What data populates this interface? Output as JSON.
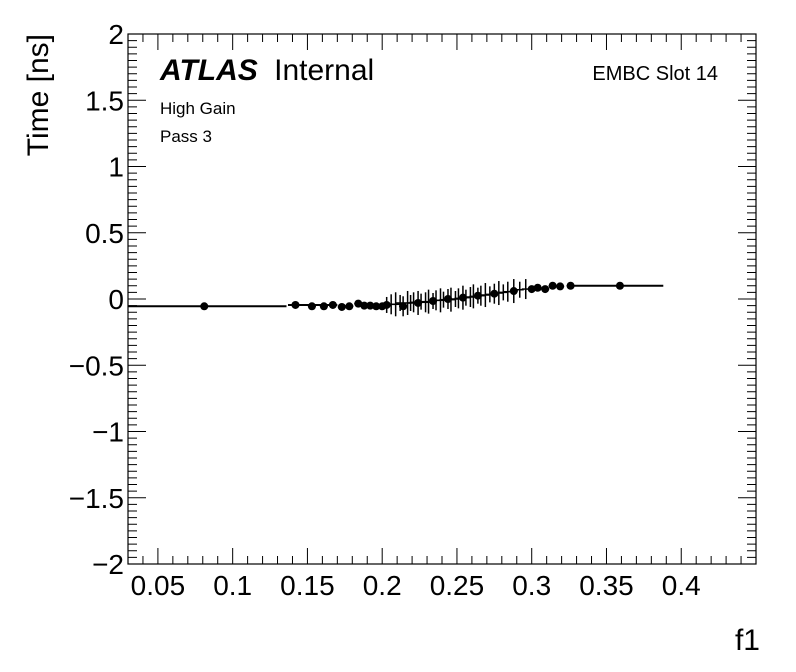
{
  "chart_data": {
    "type": "scatter",
    "title": "",
    "xlabel": "f1",
    "ylabel": "Time [ns]",
    "xlim": [
      0.03,
      0.45
    ],
    "ylim": [
      -2,
      2
    ],
    "grid": false,
    "x_ticks": [
      0.05,
      0.1,
      0.15,
      0.2,
      0.25,
      0.3,
      0.35,
      0.4
    ],
    "x_tick_labels": [
      "0.05",
      "0.1",
      "0.15",
      "0.2",
      "0.25",
      "0.3",
      "0.35",
      "0.4"
    ],
    "y_ticks": [
      -2,
      -1.5,
      -1,
      -0.5,
      0,
      0.5,
      1,
      1.5,
      2
    ],
    "y_tick_labels": [
      "−2",
      "−1.5",
      "−1",
      "−0.5",
      "0",
      "0.5",
      "1",
      "1.5",
      "2"
    ],
    "annotations": {
      "experiment": "ATLAS",
      "status": "Internal",
      "gain": "High Gain",
      "pass": "Pass 3",
      "slot": "EMBC Slot 14"
    },
    "series": [
      {
        "kind": "points",
        "marker_color": "#000000",
        "points": [
          {
            "x": 0.081,
            "y": -0.055
          },
          {
            "x": 0.142,
            "y": -0.045
          },
          {
            "x": 0.153,
            "y": -0.055
          },
          {
            "x": 0.161,
            "y": -0.055
          },
          {
            "x": 0.167,
            "y": -0.045
          },
          {
            "x": 0.173,
            "y": -0.06
          },
          {
            "x": 0.178,
            "y": -0.055
          },
          {
            "x": 0.184,
            "y": -0.035
          },
          {
            "x": 0.188,
            "y": -0.05
          },
          {
            "x": 0.192,
            "y": -0.05
          },
          {
            "x": 0.196,
            "y": -0.055
          },
          {
            "x": 0.2,
            "y": -0.055
          },
          {
            "x": 0.203,
            "y": -0.045
          },
          {
            "x": 0.206,
            "y": -0.04
          },
          {
            "x": 0.209,
            "y": -0.04
          },
          {
            "x": 0.212,
            "y": -0.03
          },
          {
            "x": 0.214,
            "y": -0.055
          },
          {
            "x": 0.217,
            "y": -0.03
          },
          {
            "x": 0.219,
            "y": -0.03
          },
          {
            "x": 0.221,
            "y": -0.025
          },
          {
            "x": 0.224,
            "y": -0.03
          },
          {
            "x": 0.226,
            "y": -0.02
          },
          {
            "x": 0.229,
            "y": -0.025
          },
          {
            "x": 0.231,
            "y": -0.02
          },
          {
            "x": 0.234,
            "y": -0.015
          },
          {
            "x": 0.236,
            "y": -0.01
          },
          {
            "x": 0.239,
            "y": -0.01
          },
          {
            "x": 0.241,
            "y": -0.005
          },
          {
            "x": 0.244,
            "y": 0.0
          },
          {
            "x": 0.246,
            "y": -0.005
          },
          {
            "x": 0.249,
            "y": 0.0
          },
          {
            "x": 0.251,
            "y": 0.005
          },
          {
            "x": 0.254,
            "y": 0.01
          },
          {
            "x": 0.256,
            "y": 0.01
          },
          {
            "x": 0.259,
            "y": 0.015
          },
          {
            "x": 0.261,
            "y": 0.02
          },
          {
            "x": 0.264,
            "y": 0.025
          },
          {
            "x": 0.266,
            "y": 0.025
          },
          {
            "x": 0.269,
            "y": 0.03
          },
          {
            "x": 0.272,
            "y": 0.035
          },
          {
            "x": 0.275,
            "y": 0.04
          },
          {
            "x": 0.278,
            "y": 0.045
          },
          {
            "x": 0.281,
            "y": 0.05
          },
          {
            "x": 0.284,
            "y": 0.055
          },
          {
            "x": 0.288,
            "y": 0.06
          },
          {
            "x": 0.292,
            "y": 0.07
          },
          {
            "x": 0.296,
            "y": 0.075
          },
          {
            "x": 0.3,
            "y": 0.075
          },
          {
            "x": 0.304,
            "y": 0.085
          },
          {
            "x": 0.309,
            "y": 0.075
          },
          {
            "x": 0.314,
            "y": 0.1
          },
          {
            "x": 0.319,
            "y": 0.095
          },
          {
            "x": 0.326,
            "y": 0.1
          },
          {
            "x": 0.359,
            "y": 0.1
          }
        ]
      },
      {
        "kind": "step-line",
        "segments": [
          {
            "x1": 0.03,
            "x2": 0.136,
            "y": -0.055
          },
          {
            "x1": 0.137,
            "x2": 0.17,
            "y": -0.045
          },
          {
            "x1": 0.327,
            "x2": 0.388,
            "y": 0.1
          }
        ]
      }
    ]
  }
}
